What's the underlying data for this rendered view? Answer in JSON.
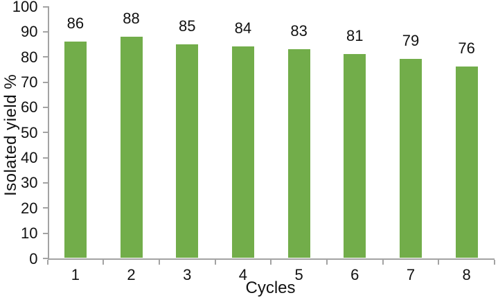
{
  "chart_data": {
    "type": "bar",
    "title": "",
    "xlabel": "Cycles",
    "ylabel": "Isolated yield %",
    "categories": [
      "1",
      "2",
      "3",
      "4",
      "5",
      "6",
      "7",
      "8"
    ],
    "values": [
      86,
      88,
      85,
      84,
      83,
      81,
      79,
      76
    ],
    "data_labels": [
      "86",
      "88",
      "85",
      "84",
      "83",
      "81",
      "79",
      "76"
    ],
    "ylim": [
      0,
      100
    ],
    "y_ticks": [
      0,
      10,
      20,
      30,
      40,
      50,
      60,
      70,
      80,
      90,
      100
    ],
    "grid": "off",
    "legend": "none",
    "colors": {
      "bar": "#72ad4a",
      "axis": "#a3a3a3",
      "text": "#111111",
      "background": "#ffffff"
    }
  }
}
